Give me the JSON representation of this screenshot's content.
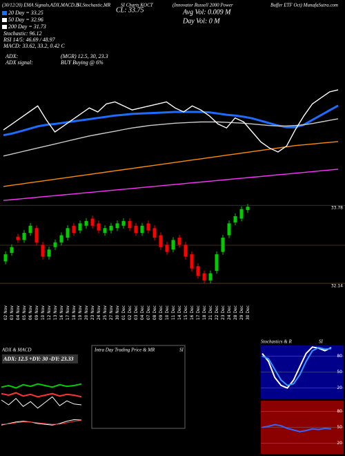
{
  "chart_data": [
    {
      "type": "candlestick",
      "title": [
        "(30/12/20) EMA Signals,ADX,MACD,B",
        "SI,Stochastic,MR",
        "SI Charts KOCT",
        "(Innovator Russell 2000 Power",
        "Buffer ETF Oct) MunafaSutra.com"
      ],
      "annotations": [
        "20 Day = 33.25",
        "50 Day = 32.96",
        "200 Day = 31.73",
        "Stochastic: 96.12",
        "RSI 14/5: 46.69 / 48.97",
        "MACD: 33.62, 33.2, 0.42 C",
        "CL: 33.75",
        "Avg Vol: 0.009 M",
        "Day Vol: 0 M",
        "ADX:",
        "(MGR) 12.5, 30, 23.3",
        "ADX signal:",
        "BUY Buying @ 6%"
      ],
      "legend_colors": [
        "#1e6cff",
        "#ffffff",
        "#ffffff"
      ],
      "categories": [
        "02 Nov",
        "03 Nov",
        "04 Nov",
        "05 Nov",
        "06 Nov",
        "09 Nov",
        "10 Nov",
        "12 Nov",
        "13 Nov",
        "16 Nov",
        "17 Nov",
        "18 Nov",
        "19 Nov",
        "20 Nov",
        "23 Nov",
        "24 Nov",
        "25 Nov",
        "27 Nov",
        "30 Nov",
        "01 Dec",
        "02 Dec",
        "03 Dec",
        "04 Dec",
        "07 Dec",
        "08 Dec",
        "09 Dec",
        "10 Dec",
        "11 Dec",
        "14 Dec",
        "15 Dec",
        "16 Dec",
        "17 Dec",
        "18 Dec",
        "21 Dec",
        "22 Dec",
        "23 Dec",
        "24 Dec",
        "28 Dec",
        "29 Dec",
        "30 Dec"
      ],
      "open": [
        32.6,
        32.78,
        33.12,
        33.05,
        33.2,
        33.3,
        32.95,
        32.7,
        32.9,
        33.0,
        33.1,
        33.35,
        33.25,
        33.35,
        33.5,
        33.4,
        33.2,
        33.25,
        33.3,
        33.35,
        33.45,
        33.35,
        33.2,
        33.4,
        33.3,
        33.15,
        32.95,
        32.85,
        33.1,
        32.95,
        32.75,
        32.5,
        32.35,
        32.2,
        32.4,
        32.8,
        33.15,
        33.42,
        33.5,
        33.68
      ],
      "high": [
        32.81,
        32.96,
        33.18,
        33.26,
        33.41,
        33.36,
        33.01,
        32.91,
        33.06,
        33.21,
        33.36,
        33.41,
        33.46,
        33.51,
        33.56,
        33.46,
        33.36,
        33.41,
        33.46,
        33.51,
        33.51,
        33.41,
        33.41,
        33.46,
        33.36,
        33.21,
        33.01,
        33.11,
        33.16,
        33.01,
        32.81,
        32.56,
        32.41,
        32.41,
        32.81,
        33.16,
        33.46,
        33.61,
        33.76,
        33.81
      ],
      "low": [
        32.54,
        32.72,
        32.99,
        32.99,
        33.14,
        32.94,
        32.64,
        32.64,
        32.84,
        32.94,
        33.04,
        33.14,
        33.19,
        33.29,
        33.29,
        33.19,
        33.14,
        33.19,
        33.24,
        33.29,
        33.24,
        33.14,
        33.14,
        33.19,
        33.04,
        32.84,
        32.74,
        32.79,
        32.89,
        32.64,
        32.39,
        32.24,
        32.14,
        32.14,
        32.34,
        32.74,
        33.09,
        33.36,
        33.44,
        33.62
      ],
      "close": [
        32.75,
        32.9,
        33.05,
        33.2,
        33.35,
        33.0,
        32.7,
        32.85,
        33.0,
        33.15,
        33.3,
        33.2,
        33.4,
        33.45,
        33.35,
        33.25,
        33.3,
        33.35,
        33.4,
        33.45,
        33.3,
        33.2,
        33.35,
        33.25,
        33.1,
        32.9,
        32.8,
        33.05,
        32.95,
        32.7,
        32.45,
        32.3,
        32.2,
        32.35,
        32.75,
        33.1,
        33.4,
        33.55,
        33.7,
        33.75
      ],
      "up_color": "#00cc00",
      "down_color": "#ff0000",
      "ylim": [
        31.85,
        34.16
      ],
      "yticks": [
        33.78,
        32.14
      ],
      "overlay": {
        "ylim": [
          30.82,
          34.27
        ],
        "price_color": "#ffffff",
        "series": [
          {
            "color": "#1e6cff",
            "values": [
              32.62,
              32.66,
              32.72,
              32.78,
              32.84,
              32.88,
              32.9,
              32.93,
              32.96,
              32.99,
              33.02,
              33.05,
              33.08,
              33.11,
              33.13,
              33.15,
              33.16,
              33.17,
              33.18,
              33.19,
              33.2,
              33.2,
              33.2,
              33.2,
              33.19,
              33.16,
              33.13,
              33.11,
              33.08,
              33.04,
              32.98,
              32.92,
              32.86,
              32.82,
              32.82,
              32.88,
              33.0,
              33.12,
              33.24,
              33.36
            ]
          },
          {
            "color": "#cccccc",
            "values": [
              32.1,
              32.15,
              32.2,
              32.25,
              32.3,
              32.35,
              32.4,
              32.45,
              32.5,
              32.55,
              32.6,
              32.64,
              32.68,
              32.72,
              32.76,
              32.8,
              32.83,
              32.86,
              32.88,
              32.9,
              32.92,
              32.93,
              32.94,
              32.95,
              32.95,
              32.95,
              32.94,
              32.93,
              32.92,
              32.9,
              32.88,
              32.86,
              32.85,
              32.85,
              32.86,
              32.88,
              32.91,
              32.95,
              32.99,
              33.03
            ]
          },
          {
            "color": "#ff8c00",
            "values": [
              31.34,
              31.37,
              31.4,
              31.43,
              31.46,
              31.49,
              31.52,
              31.55,
              31.58,
              31.61,
              31.64,
              31.67,
              31.7,
              31.73,
              31.76,
              31.79,
              31.82,
              31.85,
              31.88,
              31.91,
              31.94,
              31.97,
              32.0,
              32.03,
              32.06,
              32.09,
              32.12,
              32.15,
              32.18,
              32.21,
              32.24,
              32.27,
              32.3,
              32.33,
              32.36,
              32.38,
              32.4,
              32.42,
              32.44,
              32.46
            ]
          },
          {
            "color": "#ff33ff",
            "values": [
              30.99,
              31.01,
              31.03,
              31.05,
              31.07,
              31.09,
              31.11,
              31.13,
              31.15,
              31.17,
              31.19,
              31.21,
              31.23,
              31.25,
              31.27,
              31.29,
              31.31,
              31.33,
              31.35,
              31.37,
              31.39,
              31.41,
              31.43,
              31.45,
              31.47,
              31.49,
              31.51,
              31.53,
              31.55,
              31.57,
              31.59,
              31.61,
              31.63,
              31.65,
              31.67,
              31.69,
              31.71,
              31.73,
              31.75,
              31.77
            ]
          }
        ]
      }
    },
    {
      "type": "adx",
      "title": "ADX & MACD",
      "label": "ADX: 12.5 +DY: 30 -DY: 23.33",
      "ylim": [
        0,
        60
      ],
      "series": [
        {
          "color": "#00cc00",
          "values": [
            34,
            36,
            33,
            37,
            35,
            38,
            36,
            34,
            37,
            35,
            36,
            38
          ]
        },
        {
          "color": "#ff3333",
          "values": [
            26,
            24,
            27,
            23,
            25,
            22,
            24,
            26,
            23,
            25,
            24,
            22
          ]
        },
        {
          "color": "#ffffff",
          "values": [
            18,
            12,
            20,
            10,
            16,
            8,
            15,
            22,
            11,
            17,
            13,
            12
          ]
        }
      ],
      "macd_ylim": [
        -1,
        1
      ],
      "macd": [
        {
          "color": "#ffffff",
          "values": [
            0.1,
            0.2,
            0.3,
            0.35,
            0.3,
            0.2,
            0.15,
            0.1,
            0.2,
            0.35,
            0.45,
            0.42
          ]
        },
        {
          "color": "#ff3333",
          "values": [
            0.15,
            0.18,
            0.25,
            0.3,
            0.3,
            0.25,
            0.2,
            0.15,
            0.17,
            0.25,
            0.35,
            0.4
          ]
        }
      ]
    },
    {
      "type": "intraday",
      "title": [
        "Intra Day Trading Price & MR",
        "SI"
      ]
    },
    {
      "type": "stochastic",
      "title": [
        "Stochastics & R",
        "SI"
      ],
      "ylim": [
        0,
        100
      ],
      "yticks": [
        80,
        50,
        20
      ],
      "series": [
        {
          "color": "#ffffff",
          "values": [
            85,
            70,
            40,
            25,
            20,
            35,
            60,
            85,
            97,
            95,
            90,
            96
          ]
        },
        {
          "color": "#3399ff",
          "values": [
            80,
            75,
            55,
            35,
            25,
            28,
            45,
            70,
            90,
            96,
            93,
            94
          ]
        }
      ],
      "rsi": {
        "ylim": [
          0,
          100
        ],
        "yticks": [
          80,
          50,
          20
        ],
        "series": [
          {
            "color": "#3366ff",
            "values": [
              50,
              52,
              55,
              53,
              48,
              45,
              42,
              44,
              47,
              46,
              48,
              47
            ]
          }
        ]
      }
    }
  ]
}
